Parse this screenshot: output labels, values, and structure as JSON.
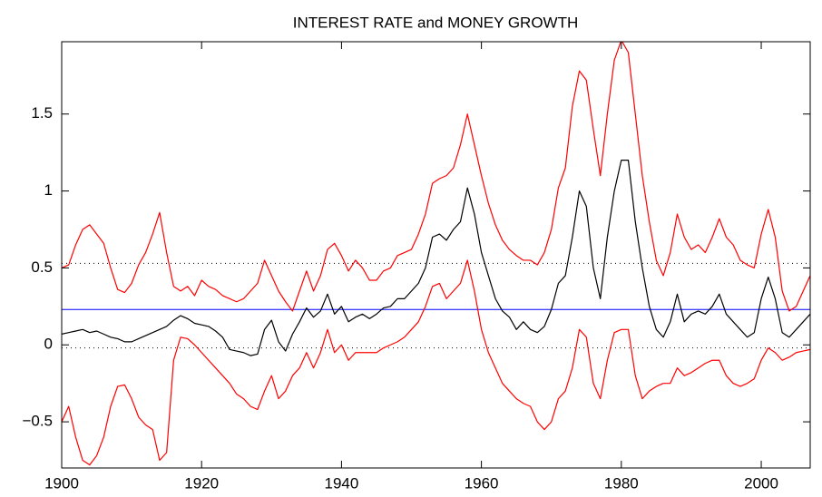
{
  "chart_data": {
    "type": "line",
    "title": "INTEREST RATE and MONEY GROWTH",
    "x": [
      1900,
      1901,
      1902,
      1903,
      1904,
      1905,
      1906,
      1907,
      1908,
      1909,
      1910,
      1911,
      1912,
      1913,
      1914,
      1915,
      1916,
      1917,
      1918,
      1919,
      1920,
      1921,
      1922,
      1923,
      1924,
      1925,
      1926,
      1927,
      1928,
      1929,
      1930,
      1931,
      1932,
      1933,
      1934,
      1935,
      1936,
      1937,
      1938,
      1939,
      1940,
      1941,
      1942,
      1943,
      1944,
      1945,
      1946,
      1947,
      1948,
      1949,
      1950,
      1951,
      1952,
      1953,
      1954,
      1955,
      1956,
      1957,
      1958,
      1959,
      1960,
      1961,
      1962,
      1963,
      1964,
      1965,
      1966,
      1967,
      1968,
      1969,
      1970,
      1971,
      1972,
      1973,
      1974,
      1975,
      1976,
      1977,
      1978,
      1979,
      1980,
      1981,
      1982,
      1983,
      1984,
      1985,
      1986,
      1987,
      1988,
      1989,
      1990,
      1991,
      1992,
      1993,
      1994,
      1995,
      1996,
      1997,
      1998,
      1999,
      2000,
      2001,
      2002,
      2003,
      2004,
      2005,
      2006,
      2007
    ],
    "series": [
      {
        "color": "#ff0000",
        "values": [
          0.5,
          0.52,
          0.65,
          0.75,
          0.78,
          0.72,
          0.66,
          0.5,
          0.36,
          0.34,
          0.4,
          0.52,
          0.6,
          0.72,
          0.86,
          0.6,
          0.38,
          0.35,
          0.38,
          0.32,
          0.42,
          0.38,
          0.36,
          0.32,
          0.3,
          0.28,
          0.3,
          0.35,
          0.4,
          0.55,
          0.45,
          0.35,
          0.28,
          0.22,
          0.35,
          0.48,
          0.35,
          0.45,
          0.62,
          0.66,
          0.58,
          0.48,
          0.55,
          0.5,
          0.42,
          0.42,
          0.48,
          0.5,
          0.58,
          0.6,
          0.62,
          0.72,
          0.85,
          1.05,
          1.08,
          1.1,
          1.15,
          1.3,
          1.5,
          1.3,
          1.1,
          0.92,
          0.78,
          0.68,
          0.62,
          0.58,
          0.55,
          0.55,
          0.52,
          0.6,
          0.75,
          1.02,
          1.15,
          1.55,
          1.78,
          1.72,
          1.4,
          1.1,
          1.5,
          1.85,
          1.98,
          1.9,
          1.5,
          1.1,
          0.8,
          0.55,
          0.45,
          0.6,
          0.85,
          0.7,
          0.62,
          0.65,
          0.6,
          0.7,
          0.82,
          0.7,
          0.65,
          0.55,
          0.52,
          0.5,
          0.72,
          0.88,
          0.7,
          0.35,
          0.22,
          0.25,
          0.35,
          0.45
        ]
      },
      {
        "color": "#000000",
        "values": [
          0.07,
          0.08,
          0.09,
          0.1,
          0.08,
          0.09,
          0.07,
          0.05,
          0.04,
          0.02,
          0.02,
          0.04,
          0.06,
          0.08,
          0.1,
          0.12,
          0.16,
          0.19,
          0.17,
          0.14,
          0.13,
          0.12,
          0.09,
          0.05,
          -0.03,
          -0.04,
          -0.05,
          -0.07,
          -0.06,
          0.1,
          0.16,
          0.02,
          -0.04,
          0.07,
          0.15,
          0.24,
          0.18,
          0.22,
          0.33,
          0.2,
          0.25,
          0.15,
          0.18,
          0.2,
          0.17,
          0.2,
          0.24,
          0.25,
          0.3,
          0.3,
          0.35,
          0.4,
          0.5,
          0.7,
          0.72,
          0.68,
          0.75,
          0.8,
          1.02,
          0.85,
          0.6,
          0.45,
          0.3,
          0.22,
          0.18,
          0.1,
          0.15,
          0.1,
          0.08,
          0.12,
          0.23,
          0.4,
          0.45,
          0.7,
          1.0,
          0.9,
          0.5,
          0.3,
          0.7,
          1.0,
          1.2,
          1.2,
          0.8,
          0.5,
          0.25,
          0.1,
          0.05,
          0.15,
          0.33,
          0.15,
          0.2,
          0.22,
          0.2,
          0.25,
          0.33,
          0.2,
          0.15,
          0.1,
          0.05,
          0.08,
          0.3,
          0.44,
          0.3,
          0.08,
          0.05,
          0.1,
          0.15,
          0.2
        ]
      },
      {
        "color": "#ff0000",
        "values": [
          -0.5,
          -0.4,
          -0.6,
          -0.75,
          -0.78,
          -0.72,
          -0.6,
          -0.4,
          -0.27,
          -0.26,
          -0.35,
          -0.47,
          -0.52,
          -0.55,
          -0.75,
          -0.7,
          -0.1,
          0.05,
          0.04,
          0.0,
          -0.05,
          -0.1,
          -0.15,
          -0.2,
          -0.25,
          -0.32,
          -0.35,
          -0.4,
          -0.42,
          -0.3,
          -0.2,
          -0.35,
          -0.3,
          -0.2,
          -0.15,
          -0.05,
          -0.15,
          -0.05,
          0.1,
          -0.05,
          0.0,
          -0.1,
          -0.05,
          -0.05,
          -0.05,
          -0.05,
          -0.02,
          0.0,
          0.02,
          0.05,
          0.1,
          0.15,
          0.25,
          0.38,
          0.4,
          0.3,
          0.35,
          0.4,
          0.55,
          0.35,
          0.1,
          -0.05,
          -0.15,
          -0.25,
          -0.3,
          -0.35,
          -0.38,
          -0.4,
          -0.5,
          -0.55,
          -0.5,
          -0.35,
          -0.3,
          -0.15,
          0.1,
          0.05,
          -0.25,
          -0.35,
          -0.1,
          0.08,
          0.1,
          0.1,
          -0.2,
          -0.35,
          -0.3,
          -0.27,
          -0.25,
          -0.25,
          -0.15,
          -0.2,
          -0.18,
          -0.15,
          -0.12,
          -0.1,
          -0.1,
          -0.2,
          -0.25,
          -0.27,
          -0.25,
          -0.22,
          -0.1,
          -0.02,
          -0.05,
          -0.1,
          -0.08,
          -0.05,
          -0.04,
          -0.03
        ]
      }
    ],
    "hlines": [
      {
        "value": 0.23,
        "color": "#0000ff",
        "style": "solid"
      },
      {
        "value": 0.53,
        "color": "#000000",
        "style": "dotted"
      },
      {
        "value": -0.02,
        "color": "#000000",
        "style": "dotted"
      }
    ],
    "xlim": [
      1900,
      2007
    ],
    "ylim": [
      -0.8,
      1.97
    ],
    "xticks": [
      1900,
      1920,
      1940,
      1960,
      1980,
      2000
    ],
    "yticks": [
      {
        "value": -0.5,
        "label": "−0.5"
      },
      0,
      0.5,
      1,
      1.5
    ],
    "grid": false
  }
}
